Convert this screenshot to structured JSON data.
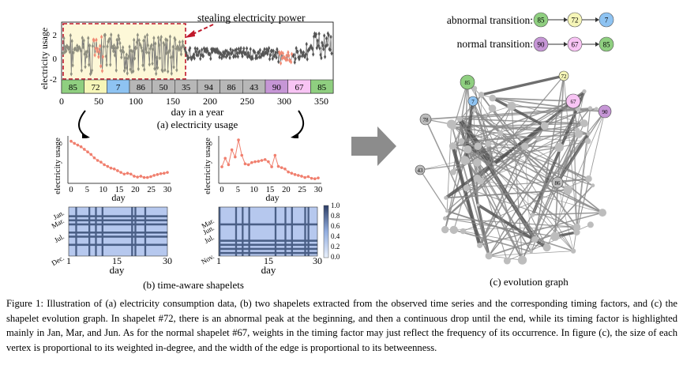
{
  "panel_a": {
    "annotation": "stealing electricity power",
    "ylabel": "electricity usage",
    "xlabel": "day in a year",
    "y_ticks": [
      "2",
      "0",
      "-2"
    ],
    "x_ticks": [
      "0",
      "50",
      "100",
      "150",
      "200",
      "250",
      "300",
      "350"
    ],
    "segments": [
      {
        "label": "85",
        "color": "#8fcf80"
      },
      {
        "label": "72",
        "color": "#f6f6b8"
      },
      {
        "label": "7",
        "color": "#8ec3f2"
      },
      {
        "label": "86",
        "color": "#b7b7b7"
      },
      {
        "label": "50",
        "color": "#b7b7b7"
      },
      {
        "label": "35",
        "color": "#b7b7b7"
      },
      {
        "label": "94",
        "color": "#b7b7b7"
      },
      {
        "label": "86",
        "color": "#b7b7b7"
      },
      {
        "label": "43",
        "color": "#b7b7b7"
      },
      {
        "label": "90",
        "color": "#c696d6"
      },
      {
        "label": "67",
        "color": "#f8c4f4"
      },
      {
        "label": "85",
        "color": "#8fcf80"
      }
    ],
    "caption": "(a) electricity usage"
  },
  "panel_b": {
    "shapelet1": {
      "ylabel": "electricity usage",
      "xlabel": "day",
      "x_ticks": [
        "0",
        "5",
        "10",
        "15",
        "20",
        "25",
        "30"
      ],
      "values": [
        0.95,
        0.9,
        0.86,
        0.82,
        0.76,
        0.7,
        0.64,
        0.56,
        0.5,
        0.46,
        0.4,
        0.36,
        0.32,
        0.3,
        0.26,
        0.22,
        0.18,
        0.2,
        0.18,
        0.13,
        0.11,
        0.13,
        0.1,
        0.1,
        0.12,
        0.15,
        0.17,
        0.19,
        0.2,
        0.22
      ],
      "heat_month_labels": [
        "Jan.",
        "Mar.",
        "Jul.",
        "Dec."
      ]
    },
    "shapelet2": {
      "ylabel": "electricity usage",
      "xlabel": "day",
      "x_ticks": [
        "0",
        "5",
        "10",
        "15",
        "20",
        "25",
        "30"
      ],
      "values": [
        0.35,
        0.55,
        0.4,
        0.75,
        0.58,
        0.98,
        0.62,
        0.42,
        0.4,
        0.45,
        0.47,
        0.48,
        0.5,
        0.52,
        0.47,
        0.35,
        0.62,
        0.36,
        0.33,
        0.3,
        0.23,
        0.2,
        0.17,
        0.15,
        0.13,
        0.1,
        0.12,
        0.08,
        0.07,
        0.09
      ],
      "heat_month_labels": [
        "Mar.",
        "Jun.",
        "Jul.",
        "Nov."
      ]
    },
    "heat_x_ticks": [
      "1",
      "15",
      "30"
    ],
    "heat_xlabel": "day",
    "colorbar_ticks": [
      "1.0",
      "0.8",
      "0.6",
      "0.4",
      "0.2",
      "0.0"
    ],
    "caption": "(b) time-aware shapelets"
  },
  "panel_c": {
    "abnormal": {
      "label": "abnormal transition:",
      "nodes": [
        "85",
        "72",
        "7"
      ],
      "colors": [
        "#8fcf80",
        "#f6f6b8",
        "#8ec3f2"
      ]
    },
    "normal": {
      "label": "normal transition:",
      "nodes": [
        "90",
        "67",
        "85"
      ],
      "colors": [
        "#c696d6",
        "#f8c4f4",
        "#8fcf80"
      ]
    },
    "graph_labels": [
      "85",
      "7",
      "72",
      "67",
      "90",
      "78",
      "43",
      "86"
    ],
    "caption": "(c) evolution graph"
  },
  "figure_caption": "Figure 1: Illustration of (a) electricity consumption data, (b) two shapelets extracted from the observed time series and the corresponding timing factors, and (c) the shapelet evolution graph. In shapelet #72, there is an abnormal peak at the beginning, and then a continuous drop until the end, while its timing factor is highlighted mainly in Jan, Mar, and Jun. As for the normal shapelet #67, weights in the timing factor may just reflect the frequency of its occurrence. In figure (c), the size of each vertex is proportional to its weighted in-degree, and the width of the edge is proportional to its betweenness."
}
